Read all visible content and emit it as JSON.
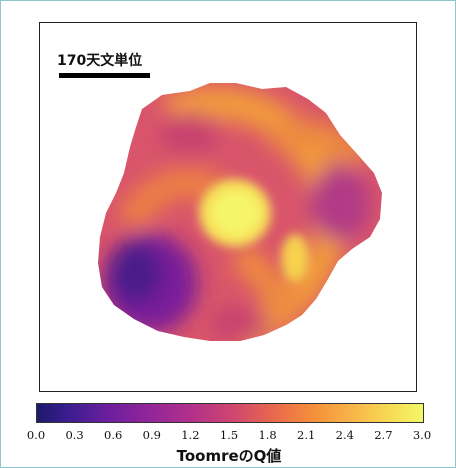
{
  "scale_label": "170天文単位",
  "colorbar": {
    "label": "ToomreのQ値",
    "ticks": [
      "0.0",
      "0.3",
      "0.6",
      "0.9",
      "1.2",
      "1.5",
      "1.8",
      "2.1",
      "2.4",
      "2.7",
      "3.0"
    ],
    "colormap": "plasma"
  },
  "colors": {
    "frame_border": "#8fc6d0",
    "low": "#1d1a6b",
    "mid": "#d24a6c",
    "high": "#f4f86a"
  }
}
